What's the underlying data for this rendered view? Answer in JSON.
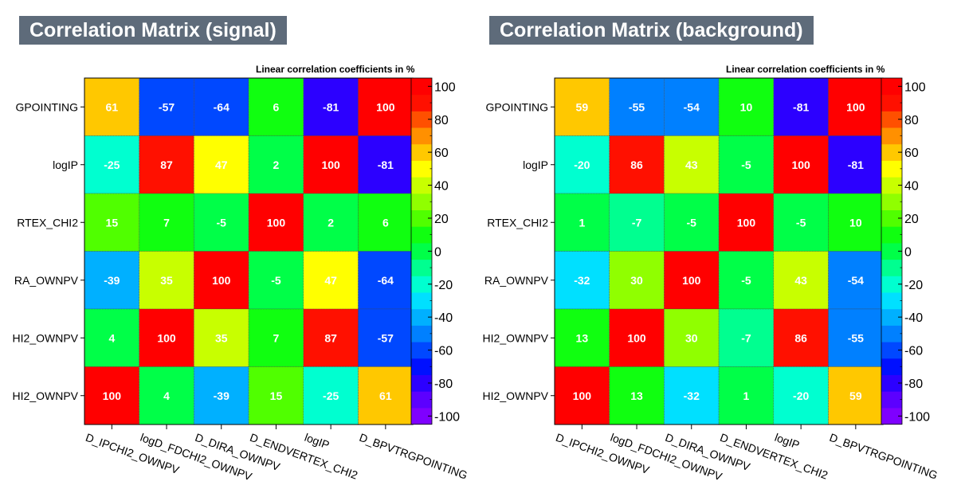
{
  "chart_data": [
    {
      "type": "heatmap",
      "title": "Correlation Matrix (signal)",
      "subtitle": "Linear correlation coefficients in %",
      "x_labels": [
        "D_IPCHI2_OWNPV",
        "logD_FDCHI2_OWNPV",
        "D_DIRA_OWNPV",
        "D_ENDVERTEX_CHI2",
        "logIP",
        "D_BPVTRGPOINTING"
      ],
      "y_labels_top_to_bottom": [
        "GPOINTING",
        "logIP",
        "RTEX_CHI2",
        "RA_OWNPV",
        "HI2_OWNPV",
        "HI2_OWNPV"
      ],
      "values_top_to_bottom": [
        [
          61,
          -57,
          -64,
          6,
          -81,
          100
        ],
        [
          -25,
          87,
          47,
          2,
          100,
          -81
        ],
        [
          15,
          7,
          -5,
          100,
          2,
          6
        ],
        [
          -39,
          35,
          100,
          -5,
          47,
          -64
        ],
        [
          4,
          100,
          35,
          7,
          87,
          -57
        ],
        [
          100,
          4,
          -39,
          15,
          -25,
          61
        ]
      ],
      "zlim": [
        -100,
        100
      ],
      "colorbar_ticks": [
        100,
        80,
        60,
        40,
        20,
        0,
        -20,
        -40,
        -60,
        -80,
        -100
      ]
    },
    {
      "type": "heatmap",
      "title": "Correlation Matrix (background)",
      "subtitle": "Linear correlation coefficients in %",
      "x_labels": [
        "D_IPCHI2_OWNPV",
        "logD_FDCHI2_OWNPV",
        "D_DIRA_OWNPV",
        "D_ENDVERTEX_CHI2",
        "logIP",
        "D_BPVTRGPOINTING"
      ],
      "y_labels_top_to_bottom": [
        "GPOINTING",
        "logIP",
        "RTEX_CHI2",
        "RA_OWNPV",
        "HI2_OWNPV",
        "HI2_OWNPV"
      ],
      "values_top_to_bottom": [
        [
          59,
          -55,
          -54,
          10,
          -81,
          100
        ],
        [
          -20,
          86,
          43,
          -5,
          100,
          -81
        ],
        [
          1,
          -7,
          -5,
          100,
          -5,
          10
        ],
        [
          -32,
          30,
          100,
          -5,
          43,
          -54
        ],
        [
          13,
          100,
          30,
          -7,
          86,
          -55
        ],
        [
          100,
          13,
          -32,
          1,
          -20,
          59
        ]
      ],
      "zlim": [
        -100,
        100
      ],
      "colorbar_ticks": [
        100,
        80,
        60,
        40,
        20,
        0,
        -20,
        -40,
        -60,
        -80,
        -100
      ]
    }
  ],
  "palette": [
    "#7f00ff",
    "#5c00ff",
    "#2c00ff",
    "#0010ff",
    "#0048ff",
    "#0080ff",
    "#00b0ff",
    "#00e0ff",
    "#00ffd0",
    "#00ff90",
    "#00ff48",
    "#10ff10",
    "#50ff00",
    "#90ff00",
    "#c8ff00",
    "#ffff00",
    "#ffc800",
    "#ff9000",
    "#ff5000",
    "#ff1000",
    "#ff0000"
  ]
}
